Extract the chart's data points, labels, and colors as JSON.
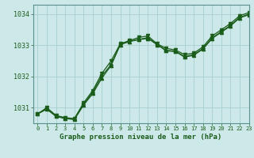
{
  "title": "Graphe pression niveau de la mer (hPa)",
  "bg_color": "#cce8e8",
  "line_color": "#1a5c1a",
  "grid_color": "#a8cece",
  "xlim": [
    -0.5,
    23
  ],
  "ylim": [
    1030.5,
    1034.3
  ],
  "yticks": [
    1031,
    1032,
    1033,
    1034
  ],
  "xticks": [
    0,
    1,
    2,
    3,
    4,
    5,
    6,
    7,
    8,
    9,
    10,
    11,
    12,
    13,
    14,
    15,
    16,
    17,
    18,
    19,
    20,
    21,
    22,
    23
  ],
  "line1_x": [
    0,
    1,
    2,
    3,
    4,
    5,
    6,
    7,
    8,
    9,
    10,
    11,
    12,
    13,
    14,
    15,
    16,
    17,
    18,
    19,
    20,
    21,
    22,
    23
  ],
  "line1_y": [
    1030.8,
    1031.0,
    1030.75,
    1030.68,
    1030.65,
    1031.15,
    1031.55,
    1032.1,
    1032.5,
    1033.05,
    1033.15,
    1033.25,
    1033.3,
    1033.05,
    1032.9,
    1032.85,
    1032.7,
    1032.75,
    1032.95,
    1033.3,
    1033.5,
    1033.7,
    1033.95,
    1034.05
  ],
  "line2_x": [
    0,
    1,
    2,
    3,
    4,
    5,
    6,
    7,
    8,
    9,
    10,
    11,
    12,
    13,
    14,
    15,
    16,
    17,
    18,
    19,
    20,
    21,
    22,
    23
  ],
  "line2_y": [
    1030.8,
    1030.95,
    1030.72,
    1030.65,
    1030.62,
    1031.08,
    1031.45,
    1031.95,
    1032.35,
    1033.02,
    1033.12,
    1033.18,
    1033.22,
    1033.02,
    1032.82,
    1032.8,
    1032.62,
    1032.68,
    1032.88,
    1033.22,
    1033.42,
    1033.62,
    1033.88,
    1033.98
  ],
  "line3_x": [
    0,
    1,
    2,
    3,
    4,
    5,
    6,
    7,
    8,
    9,
    10,
    11,
    12,
    13,
    14,
    15,
    16,
    17,
    18,
    19,
    20,
    21,
    22,
    23
  ],
  "line3_y": [
    1030.8,
    1030.97,
    1030.73,
    1030.66,
    1030.63,
    1031.1,
    1031.5,
    1032.02,
    1032.38,
    1033.03,
    1033.13,
    1033.19,
    1033.24,
    1033.03,
    1032.84,
    1032.81,
    1032.64,
    1032.7,
    1032.9,
    1033.24,
    1033.44,
    1033.64,
    1033.9,
    1034.0
  ]
}
